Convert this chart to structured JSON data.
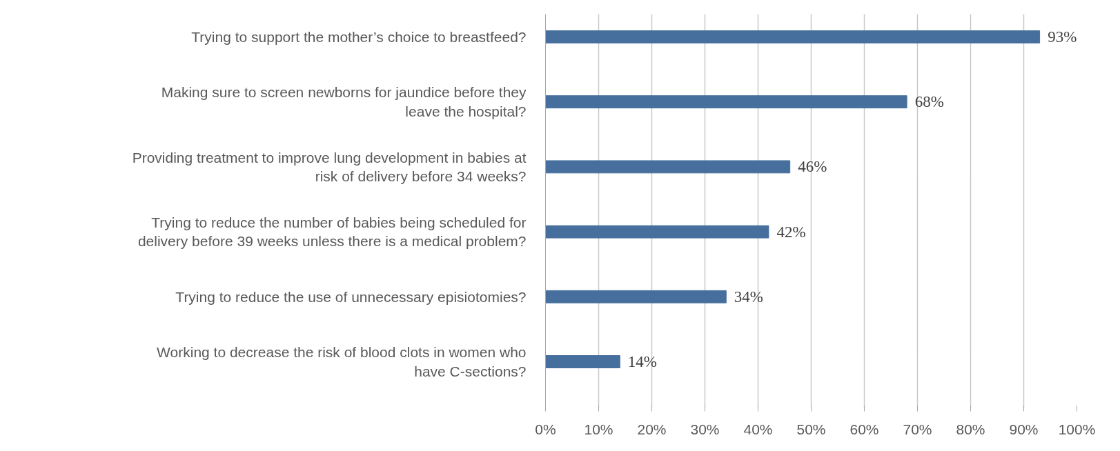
{
  "chart_data": {
    "type": "bar",
    "orientation": "horizontal",
    "categories": [
      "Trying to support the mother’s choice to breastfeed?",
      "Making sure to screen newborns for jaundice before they\nleave the hospital?",
      "Providing treatment to improve lung development in babies at\nrisk of delivery before 34 weeks?",
      "Trying to reduce the number of babies being scheduled for\ndelivery before 39 weeks unless there is a medical problem?",
      "Trying to reduce the use of unnecessary episiotomies?",
      "Working to decrease the risk of blood clots in women who\nhave C-sections?"
    ],
    "values": [
      93,
      68,
      46,
      42,
      34,
      14
    ],
    "value_labels": [
      "93%",
      "68%",
      "46%",
      "42%",
      "34%",
      "14%"
    ],
    "color": "#466f9d",
    "xlim": [
      0,
      100
    ],
    "xticks": [
      {
        "value": 0,
        "label": "0%"
      },
      {
        "value": 10,
        "label": "10%"
      },
      {
        "value": 20,
        "label": "20%"
      },
      {
        "value": 30,
        "label": "30%"
      },
      {
        "value": 40,
        "label": "40%"
      },
      {
        "value": 50,
        "label": "50%"
      },
      {
        "value": 60,
        "label": "60%"
      },
      {
        "value": 70,
        "label": "70%"
      },
      {
        "value": 80,
        "label": "80%"
      },
      {
        "value": 90,
        "label": "90%"
      },
      {
        "value": 100,
        "label": "100%"
      }
    ],
    "grid": "x"
  }
}
